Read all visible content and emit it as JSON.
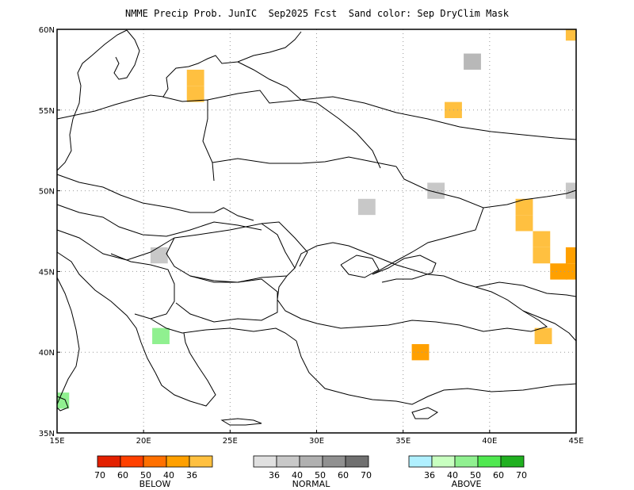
{
  "title": "NMME Precip Prob. JunIC  Sep2025 Fcst  Sand color: Sep DryClim Mask",
  "chart_data": {
    "type": "map",
    "title": "NMME Precip Prob. JunIC  Sep2025 Fcst  Sand color: Sep DryClim Mask",
    "lon_range": [
      15,
      45
    ],
    "lat_range": [
      35,
      60
    ],
    "grid": true,
    "x_ticks": [
      {
        "value": 15,
        "label": "15E"
      },
      {
        "value": 20,
        "label": "20E"
      },
      {
        "value": 25,
        "label": "25E"
      },
      {
        "value": 30,
        "label": "30E"
      },
      {
        "value": 35,
        "label": "35E"
      },
      {
        "value": 40,
        "label": "40E"
      },
      {
        "value": 45,
        "label": "45E"
      }
    ],
    "y_ticks": [
      {
        "value": 35,
        "label": "35N"
      },
      {
        "value": 40,
        "label": "40N"
      },
      {
        "value": 45,
        "label": "45N"
      },
      {
        "value": 50,
        "label": "50N"
      },
      {
        "value": 55,
        "label": "55N"
      },
      {
        "value": 60,
        "label": "60N"
      }
    ],
    "cells": [
      {
        "lon": 23.0,
        "lat": 57.0,
        "category": "below",
        "bin": 0
      },
      {
        "lon": 23.0,
        "lat": 56.0,
        "category": "below",
        "bin": 0
      },
      {
        "lon": 37.9,
        "lat": 55.0,
        "category": "below",
        "bin": 0
      },
      {
        "lon": 39.0,
        "lat": 58.0,
        "category": "normal",
        "bin": 2
      },
      {
        "lon": 44.9,
        "lat": 59.8,
        "category": "below",
        "bin": 0
      },
      {
        "lon": 44.9,
        "lat": 50.0,
        "category": "normal",
        "bin": 1
      },
      {
        "lon": 36.9,
        "lat": 50.0,
        "category": "normal",
        "bin": 1
      },
      {
        "lon": 32.9,
        "lat": 49.0,
        "category": "normal",
        "bin": 1
      },
      {
        "lon": 42.0,
        "lat": 49.0,
        "category": "below",
        "bin": 0
      },
      {
        "lon": 42.0,
        "lat": 48.0,
        "category": "below",
        "bin": 0
      },
      {
        "lon": 43.0,
        "lat": 47.0,
        "category": "below",
        "bin": 0
      },
      {
        "lon": 43.0,
        "lat": 46.0,
        "category": "below",
        "bin": 0
      },
      {
        "lon": 44.0,
        "lat": 45.0,
        "category": "below",
        "bin": 1
      },
      {
        "lon": 44.9,
        "lat": 45.0,
        "category": "below",
        "bin": 1
      },
      {
        "lon": 44.9,
        "lat": 46.0,
        "category": "below",
        "bin": 1
      },
      {
        "lon": 20.9,
        "lat": 46.0,
        "category": "normal",
        "bin": 1
      },
      {
        "lon": 21.0,
        "lat": 41.0,
        "category": "above",
        "bin": 1
      },
      {
        "lon": 43.1,
        "lat": 41.0,
        "category": "below",
        "bin": 0
      },
      {
        "lon": 36.0,
        "lat": 40.0,
        "category": "below",
        "bin": 1
      },
      {
        "lon": 15.2,
        "lat": 37.0,
        "category": "above",
        "bin": 2
      }
    ],
    "legend": {
      "below": {
        "title": "BELOW",
        "labels": [
          "70",
          "60",
          "50",
          "40",
          "36"
        ],
        "colors": [
          "#e32000",
          "#ff4000",
          "#ff7000",
          "#ffa000",
          "#ffc040"
        ]
      },
      "normal": {
        "title": "NORMAL",
        "labels": [
          "36",
          "40",
          "50",
          "60",
          "70"
        ],
        "colors": [
          "#e0e0e0",
          "#c8c8c8",
          "#b0b0b0",
          "#909090",
          "#707070"
        ]
      },
      "above": {
        "title": "ABOVE",
        "labels": [
          "36",
          "40",
          "50",
          "60",
          "70"
        ],
        "colors": [
          "#b0f0ff",
          "#c8ffc0",
          "#90f090",
          "#50e850",
          "#20b020"
        ]
      }
    },
    "below_cell_colors": [
      "#ffc040",
      "#ffa000"
    ],
    "normal_cell_colors": [
      "#c8c8c8",
      "#c8c8c8",
      "#b8b8b8"
    ],
    "above_cell_colors": [
      "#c8ffc0",
      "#90f090"
    ]
  }
}
